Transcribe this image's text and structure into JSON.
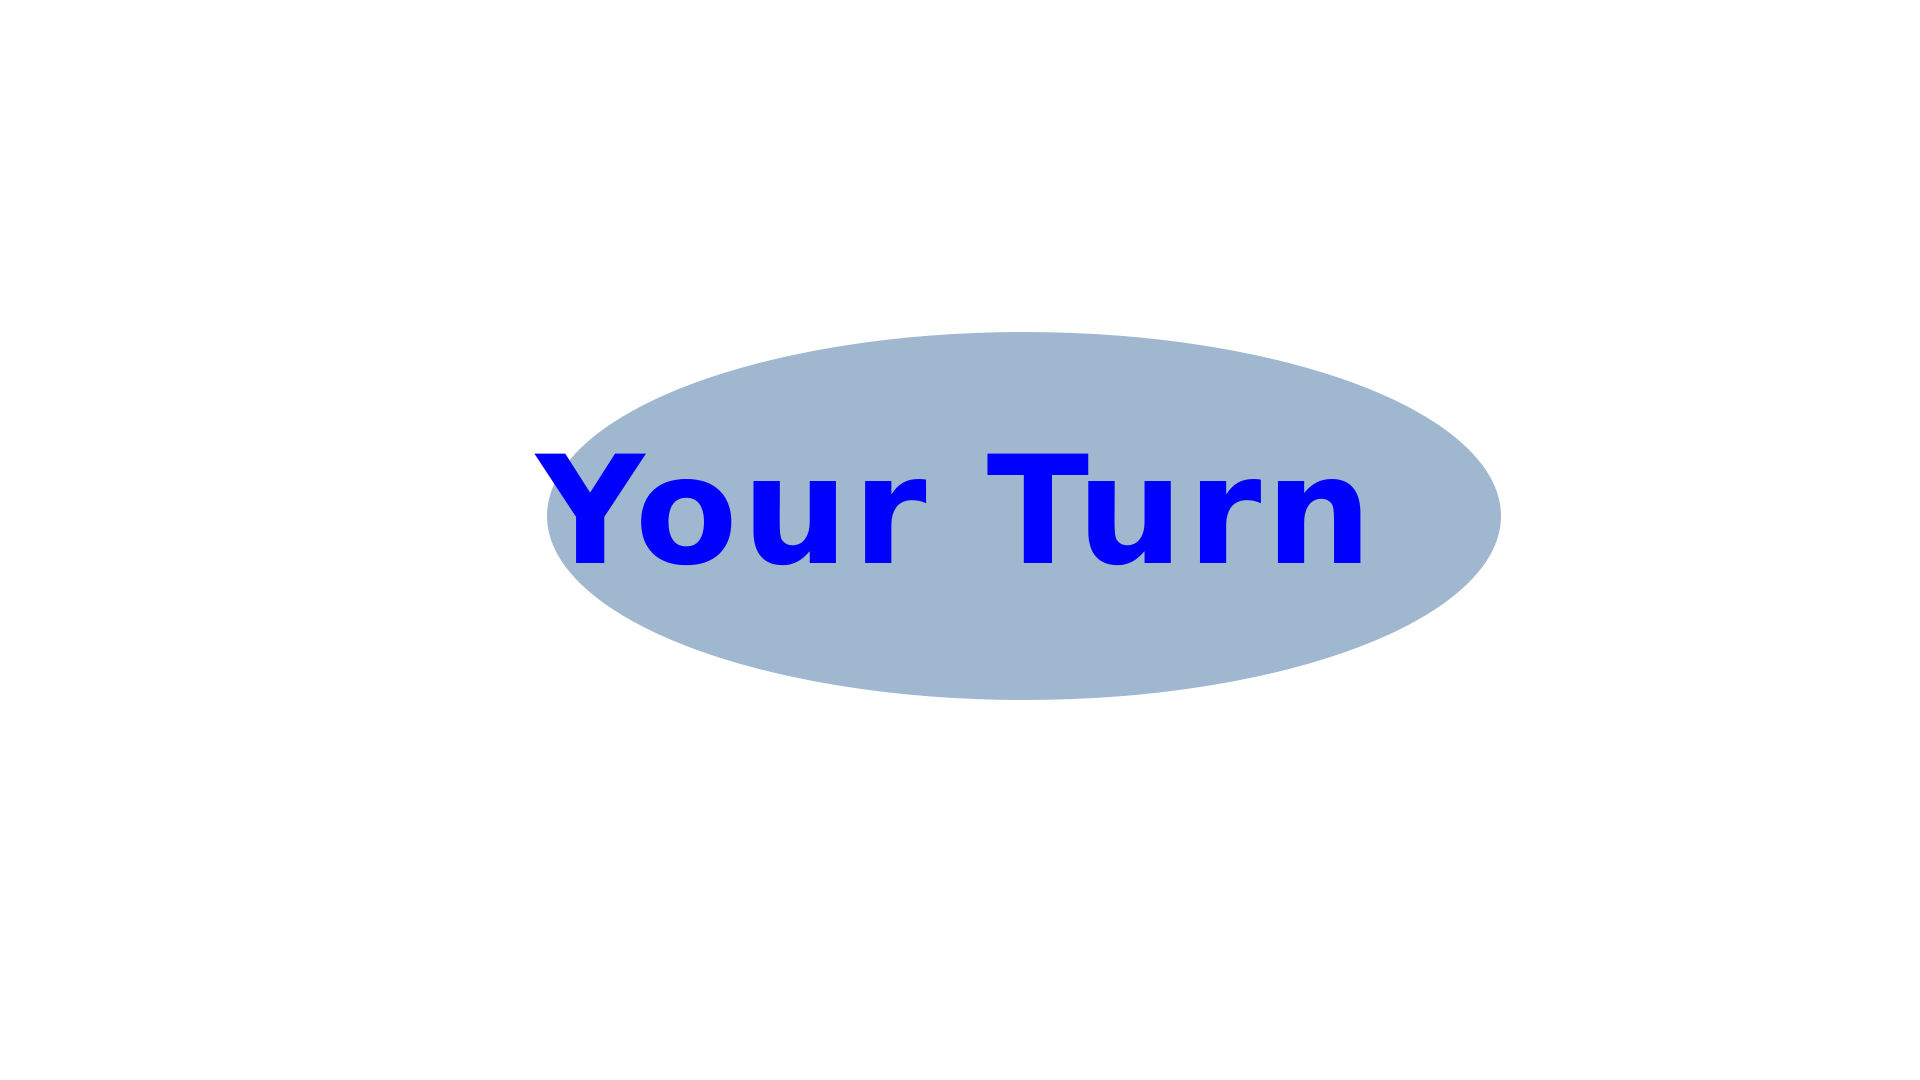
{
  "slide": {
    "shape_label": "Your Turn",
    "oval_color": "#9fb7cf",
    "text_color": "#0000ff",
    "background_color": "#ffffff"
  }
}
